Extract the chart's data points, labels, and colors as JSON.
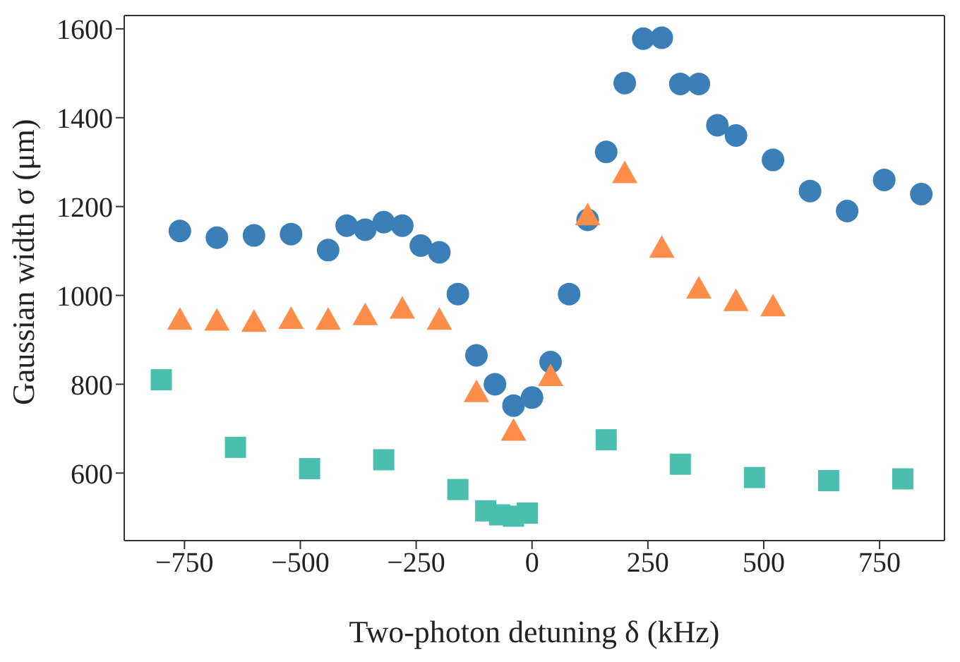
{
  "chart_data": {
    "type": "scatter",
    "xlabel": "Two-photon detuning δ (kHz)",
    "ylabel": "Gaussian width σ (μm)",
    "xlim": [
      -880,
      890
    ],
    "ylim": [
      448,
      1630
    ],
    "xticks": [
      {
        "value": -750,
        "label": "−750"
      },
      {
        "value": -500,
        "label": "−500"
      },
      {
        "value": -250,
        "label": "−250"
      },
      0,
      250,
      500,
      750
    ],
    "yticks": [
      600,
      800,
      1000,
      1200,
      1400,
      1600
    ],
    "series": [
      {
        "color": "#3a7fb8",
        "marker": "circle",
        "x": [
          -760,
          -680,
          -600,
          -520,
          -440,
          -400,
          -360,
          -320,
          -280,
          -240,
          -200,
          -160,
          -120,
          -80,
          -40,
          0,
          40,
          80,
          120,
          160,
          200,
          240,
          280,
          320,
          360,
          400,
          440,
          520,
          600,
          680,
          760,
          840
        ],
        "values": [
          1145,
          1130,
          1135,
          1138,
          1102,
          1157,
          1148,
          1165,
          1157,
          1112,
          1097,
          1003,
          865,
          800,
          752,
          770,
          850,
          1003,
          1170,
          1323,
          1478,
          1578,
          1580,
          1476,
          1476,
          1383,
          1360,
          1305,
          1235,
          1190,
          1260,
          1228
        ]
      },
      {
        "color": "#fd8d49",
        "marker": "triangle",
        "x": [
          -760,
          -680,
          -600,
          -520,
          -440,
          -360,
          -280,
          -200,
          -120,
          -40,
          40,
          120,
          200,
          280,
          360,
          440,
          520
        ],
        "values": [
          945,
          943,
          940,
          947,
          945,
          955,
          970,
          945,
          782,
          695,
          818,
          1180,
          1275,
          1107,
          1015,
          987,
          975
        ]
      },
      {
        "color": "#4bbfad",
        "marker": "square",
        "x": [
          -800,
          -640,
          -480,
          -320,
          -160,
          -100,
          -70,
          -40,
          -10,
          160,
          320,
          480,
          640,
          800
        ],
        "values": [
          810,
          658,
          610,
          630,
          563,
          515,
          506,
          503,
          510,
          675,
          620,
          590,
          583,
          587
        ]
      }
    ]
  }
}
